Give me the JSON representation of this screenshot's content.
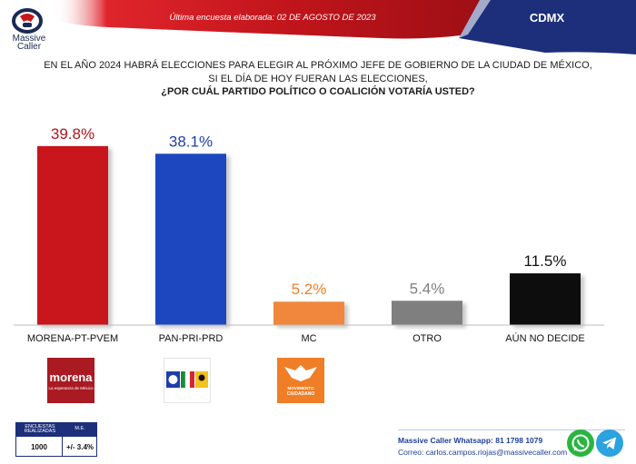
{
  "header": {
    "brand_line1": "Massive",
    "brand_line2": "Caller",
    "subtitle": "Última encuesta elaborada: 02 DE AGOSTO DE 2023",
    "region": "CDMX"
  },
  "question": {
    "line1": "EN EL AÑO 2024 HABRÁ ELECCIONES PARA ELEGIR AL PRÓXIMO JEFE DE GOBIERNO DE  LA CIUDAD DE MÉXICO,",
    "line2": "SI EL DÍA DE HOY FUERAN LAS ELECCIONES,",
    "line3": "¿POR CUÁL PARTIDO POLÍTICO O COALICIÓN VOTARÍA USTED?"
  },
  "chart_data": {
    "type": "bar",
    "title": "¿POR CUÁL PARTIDO POLÍTICO O COALICIÓN VOTARÍA USTED?",
    "categories": [
      "MORENA-PT-PVEM",
      "PAN-PRI-PRD",
      "MC",
      "OTRO",
      "AÚN NO DECIDE"
    ],
    "values": [
      39.8,
      38.1,
      5.2,
      5.4,
      11.5
    ],
    "value_labels": [
      "39.8%",
      "38.1%",
      "5.2%",
      "5.4%",
      "11.5%"
    ],
    "bar_colors": [
      "#c8151e",
      "#1f46be",
      "#f0873e",
      "#7f7f7f",
      "#0a0a0a"
    ],
    "label_colors": [
      "#b0141c",
      "#1f3fa8",
      "#f07e26",
      "#7f7f7f",
      "#111111"
    ],
    "ylim": [
      0,
      42
    ],
    "xlabel": "",
    "ylabel": ""
  },
  "party_logos": {
    "morena": "morena",
    "morena_tagline": "La esperanza de México",
    "mc_line1": "MOVIMIENTO",
    "mc_line2": "CIUDADANO"
  },
  "sample_table": {
    "h1": "ENCUESTAS REALIZADAS",
    "h2": "M.E.",
    "v1": "1000",
    "v2": "+/- 3.4%"
  },
  "footer": {
    "whatsapp": "Massive Caller Whatsapp: 81 1798 1079",
    "email": "Correo: carlos.campos.riojas@massivecaller.com"
  },
  "colors": {
    "header_red": "#c8161d",
    "header_navy": "#1d2f7a",
    "brand_navy": "#1a2a55"
  }
}
